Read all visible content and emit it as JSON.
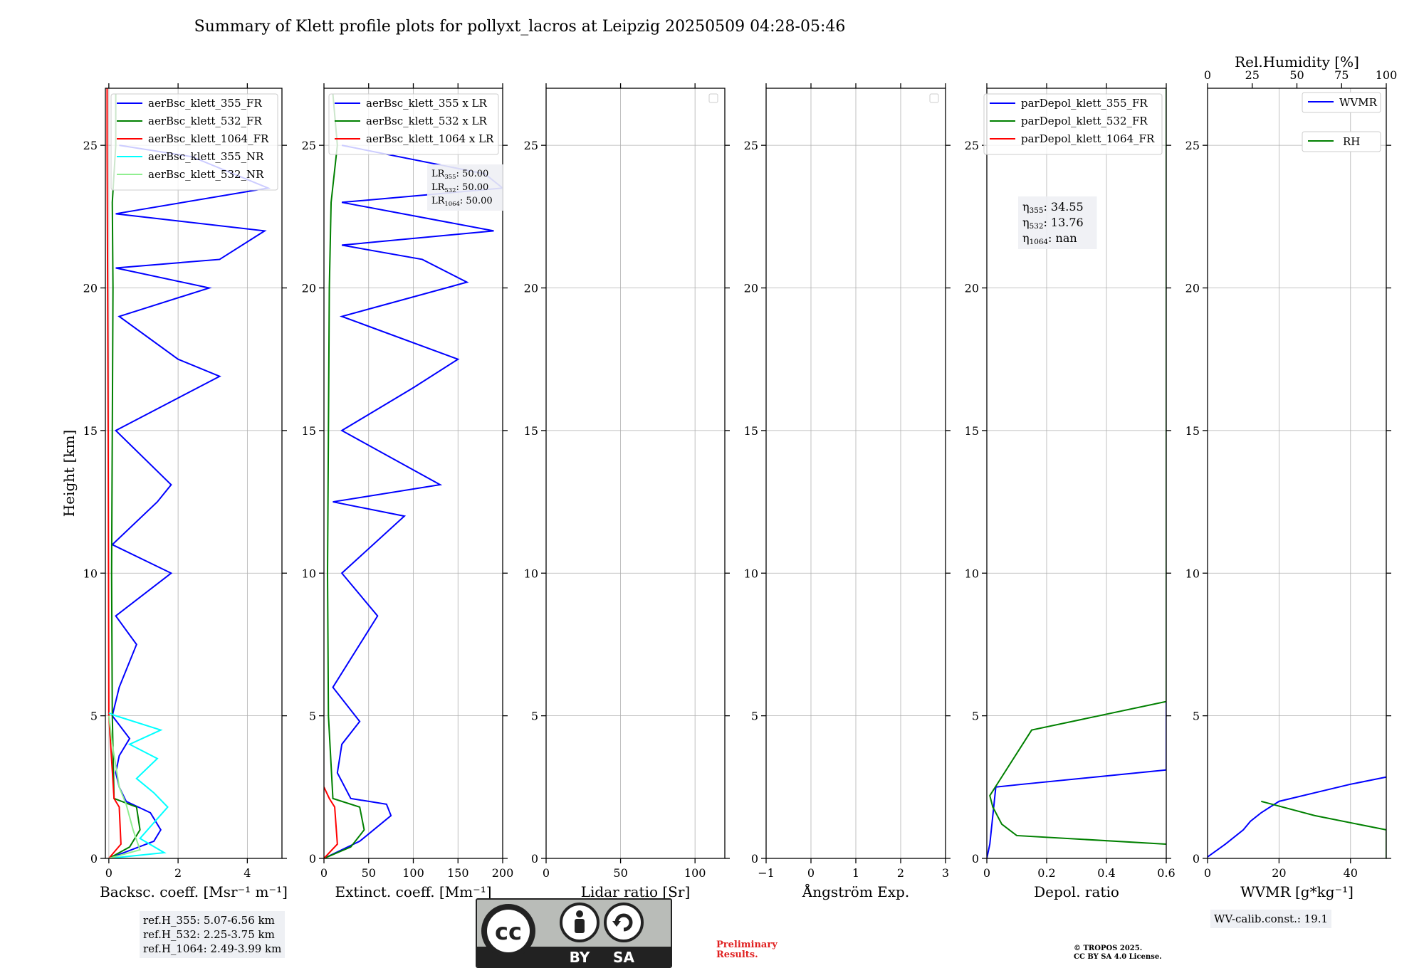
{
  "figure": {
    "title": "Summary of Klett profile plots for pollyxt_lacros at Leipzig 20250509 04:28-05:46",
    "ref_lines": [
      "ref.H_355: 5.07-6.56 km",
      "ref.H_532: 2.25-3.75 km",
      "ref.H_1064: 2.49-3.99 km"
    ],
    "lr_lines": [
      "LR355: 50.00",
      "LR532: 50.00",
      "LR1064: 50.00"
    ],
    "depol_lines": [
      "η355: 34.55",
      "η532: 13.76",
      "η1064: nan"
    ],
    "wv_calib": "WV-calib.const.: 19.1",
    "preliminary": [
      "Preliminary",
      "Results."
    ],
    "copyright": [
      "© TROPOS 2025.",
      "CC BY SA 4.0 License."
    ],
    "license_badge": {
      "by": "BY",
      "sa": "SA",
      "cc": "cc"
    }
  },
  "colors": {
    "blue": "#0000ff",
    "green": "#008000",
    "red": "#ff0000",
    "cyan": "#00ffff",
    "lightgreen": "#90ee90",
    "grid": "#b0b0b0"
  },
  "chart_data": [
    {
      "type": "line",
      "ylabel": "Height [km]",
      "xlabel": "Backsc. coeff. [Msr⁻¹ m⁻¹]",
      "xlim": [
        -0.1,
        5
      ],
      "ylim": [
        0,
        27
      ],
      "xticks": [
        0,
        2,
        4
      ],
      "yticks": [
        0,
        5,
        10,
        15,
        20,
        25
      ],
      "legend": "top-right",
      "series": [
        {
          "name": "aerBsc_klett_355_FR",
          "color": "#0000ff",
          "x": [
            0.0,
            1.3,
            1.5,
            1.2,
            0.5,
            0.3,
            0.2,
            0.3,
            0.6,
            0.1,
            0.3,
            0.8,
            0.2,
            1.8,
            0.1,
            1.4,
            1.8,
            0.2,
            3.2,
            2.0,
            0.3,
            2.9,
            0.2,
            3.2,
            4.5,
            0.2,
            4.6,
            2.4,
            0.3
          ],
          "y": [
            0.0,
            0.6,
            1.0,
            1.6,
            2.0,
            2.5,
            3.0,
            3.6,
            4.2,
            5.0,
            6.0,
            7.5,
            8.5,
            10.0,
            11.0,
            12.5,
            13.1,
            15.0,
            16.9,
            17.5,
            19.0,
            20.0,
            20.7,
            21.0,
            22.0,
            22.6,
            23.5,
            24.6,
            25.0
          ]
        },
        {
          "name": "aerBsc_klett_532_FR",
          "color": "#008000",
          "x": [
            0.0,
            0.6,
            0.9,
            0.8,
            0.15,
            0.1,
            0.08,
            0.1,
            0.12,
            0.1,
            0.2,
            0.2
          ],
          "y": [
            0.0,
            0.4,
            1.0,
            1.8,
            2.1,
            5.0,
            10.0,
            15.0,
            20.0,
            23.0,
            25.0,
            26.8
          ]
        },
        {
          "name": "aerBsc_klett_1064_FR",
          "color": "#ff0000",
          "x": [
            0.0,
            0.35,
            0.3,
            0.15,
            0.0,
            -0.02,
            -0.05,
            -0.05
          ],
          "y": [
            0.0,
            0.5,
            1.8,
            2.1,
            5.0,
            15.0,
            25.0,
            27.0
          ]
        },
        {
          "name": "aerBsc_klett_355_NR",
          "color": "#00ffff",
          "x": [
            0.0,
            1.6,
            0.9,
            1.7,
            1.3,
            0.8,
            1.4,
            0.6,
            1.5,
            0.2,
            0.0
          ],
          "y": [
            0.0,
            0.2,
            0.7,
            1.8,
            2.3,
            2.8,
            3.5,
            4.0,
            4.5,
            5.0,
            5.1
          ]
        },
        {
          "name": "aerBsc_klett_532_NR",
          "color": "#90ee90",
          "x": [
            0.0,
            0.9,
            0.7,
            0.5,
            0.3,
            0.1,
            0.0
          ],
          "y": [
            0.0,
            0.3,
            1.0,
            1.9,
            2.5,
            4.0,
            5.0
          ]
        }
      ]
    },
    {
      "type": "line",
      "xlabel": "Extinct. coeff. [Mm⁻¹]",
      "xlim": [
        0,
        200
      ],
      "ylim": [
        0,
        27
      ],
      "xticks": [
        0,
        50,
        100,
        150,
        200
      ],
      "yticks": [
        0,
        5,
        10,
        15,
        20,
        25
      ],
      "legend": "top-right",
      "series": [
        {
          "name": "aerBsc_klett_355 x LR",
          "color": "#0000ff",
          "x": [
            0,
            40,
            75,
            70,
            30,
            15,
            20,
            40,
            10,
            60,
            20,
            90,
            10,
            130,
            20,
            100,
            150,
            20,
            160,
            110,
            20,
            190,
            20,
            200,
            180,
            20
          ],
          "y": [
            0.0,
            0.6,
            1.5,
            1.9,
            2.1,
            3.0,
            4.0,
            4.8,
            6.0,
            8.5,
            10.0,
            12.0,
            12.5,
            13.1,
            15.0,
            16.5,
            17.5,
            19.0,
            20.2,
            21.0,
            21.5,
            22.0,
            23.0,
            23.5,
            24.0,
            25.0
          ]
        },
        {
          "name": "aerBsc_klett_532 x LR",
          "color": "#008000",
          "x": [
            0,
            30,
            45,
            40,
            10,
            5,
            4,
            5,
            6,
            8,
            15,
            10
          ],
          "y": [
            0.0,
            0.4,
            1.0,
            1.8,
            2.1,
            5.0,
            10.0,
            15.0,
            20.0,
            23.0,
            25.0,
            26.8
          ]
        },
        {
          "name": "aerBsc_klett_1064 x LR",
          "color": "#ff0000",
          "x": [
            0,
            15,
            12,
            6,
            0
          ],
          "y": [
            0.0,
            0.5,
            1.8,
            2.1,
            2.5
          ]
        }
      ]
    },
    {
      "type": "line",
      "xlabel": "Lidar ratio [Sr]",
      "xlim": [
        0,
        120
      ],
      "ylim": [
        0,
        27
      ],
      "xticks": [
        0,
        50,
        100
      ],
      "yticks": [
        0,
        5,
        10,
        15,
        20,
        25
      ],
      "series": []
    },
    {
      "type": "line",
      "xlabel": "Ångström Exp.",
      "xlim": [
        -1,
        3
      ],
      "ylim": [
        0,
        27
      ],
      "xticks": [
        -1,
        0,
        1,
        2,
        3
      ],
      "yticks": [
        0,
        5,
        10,
        15,
        20,
        25
      ],
      "series": []
    },
    {
      "type": "line",
      "xlabel": "Depol. ratio",
      "xlim": [
        0,
        0.6
      ],
      "ylim": [
        0,
        27
      ],
      "xticks": [
        0.0,
        0.2,
        0.4,
        0.6
      ],
      "yticks": [
        0,
        5,
        10,
        15,
        20,
        25
      ],
      "legend": "top-right",
      "series": [
        {
          "name": "parDepol_klett_355_FR",
          "color": "#0000ff",
          "x": [
            0.0,
            0.01,
            0.02,
            0.03,
            0.12,
            0.6,
            0.6
          ],
          "y": [
            0.0,
            0.5,
            1.5,
            2.5,
            2.6,
            3.1,
            27.0
          ]
        },
        {
          "name": "parDepol_klett_532_FR",
          "color": "#008000",
          "x": [
            0.6,
            0.1,
            0.05,
            0.02,
            0.01,
            0.15,
            0.6,
            0.6
          ],
          "y": [
            0.5,
            0.8,
            1.2,
            1.8,
            2.2,
            4.5,
            5.5,
            27.0
          ]
        },
        {
          "name": "parDepol_klett_1064_FR",
          "color": "#ff0000",
          "x": [],
          "y": []
        }
      ]
    },
    {
      "type": "line",
      "xlabel": "WVMR [g*kg⁻¹]",
      "x2label": "Rel.Humidity [%]",
      "xlim": [
        0,
        50
      ],
      "x2lim": [
        0,
        100
      ],
      "ylim": [
        0,
        27
      ],
      "xticks": [
        0,
        20,
        40
      ],
      "x2ticks": [
        0,
        25,
        50,
        75,
        100
      ],
      "yticks": [
        0,
        5,
        10,
        15,
        20,
        25
      ],
      "legend": "top-right",
      "series": [
        {
          "name": "WVMR",
          "color": "#0000ff",
          "x": [
            0,
            5,
            10,
            12,
            15,
            20,
            30,
            40,
            50
          ],
          "y": [
            0.05,
            0.5,
            1.0,
            1.3,
            1.6,
            2.0,
            2.3,
            2.6,
            2.85
          ]
        },
        {
          "name": "RH",
          "color": "#008000",
          "x2": [
            30,
            60,
            100,
            100
          ],
          "y": [
            2.0,
            1.5,
            1.0,
            0.0
          ]
        }
      ]
    }
  ]
}
